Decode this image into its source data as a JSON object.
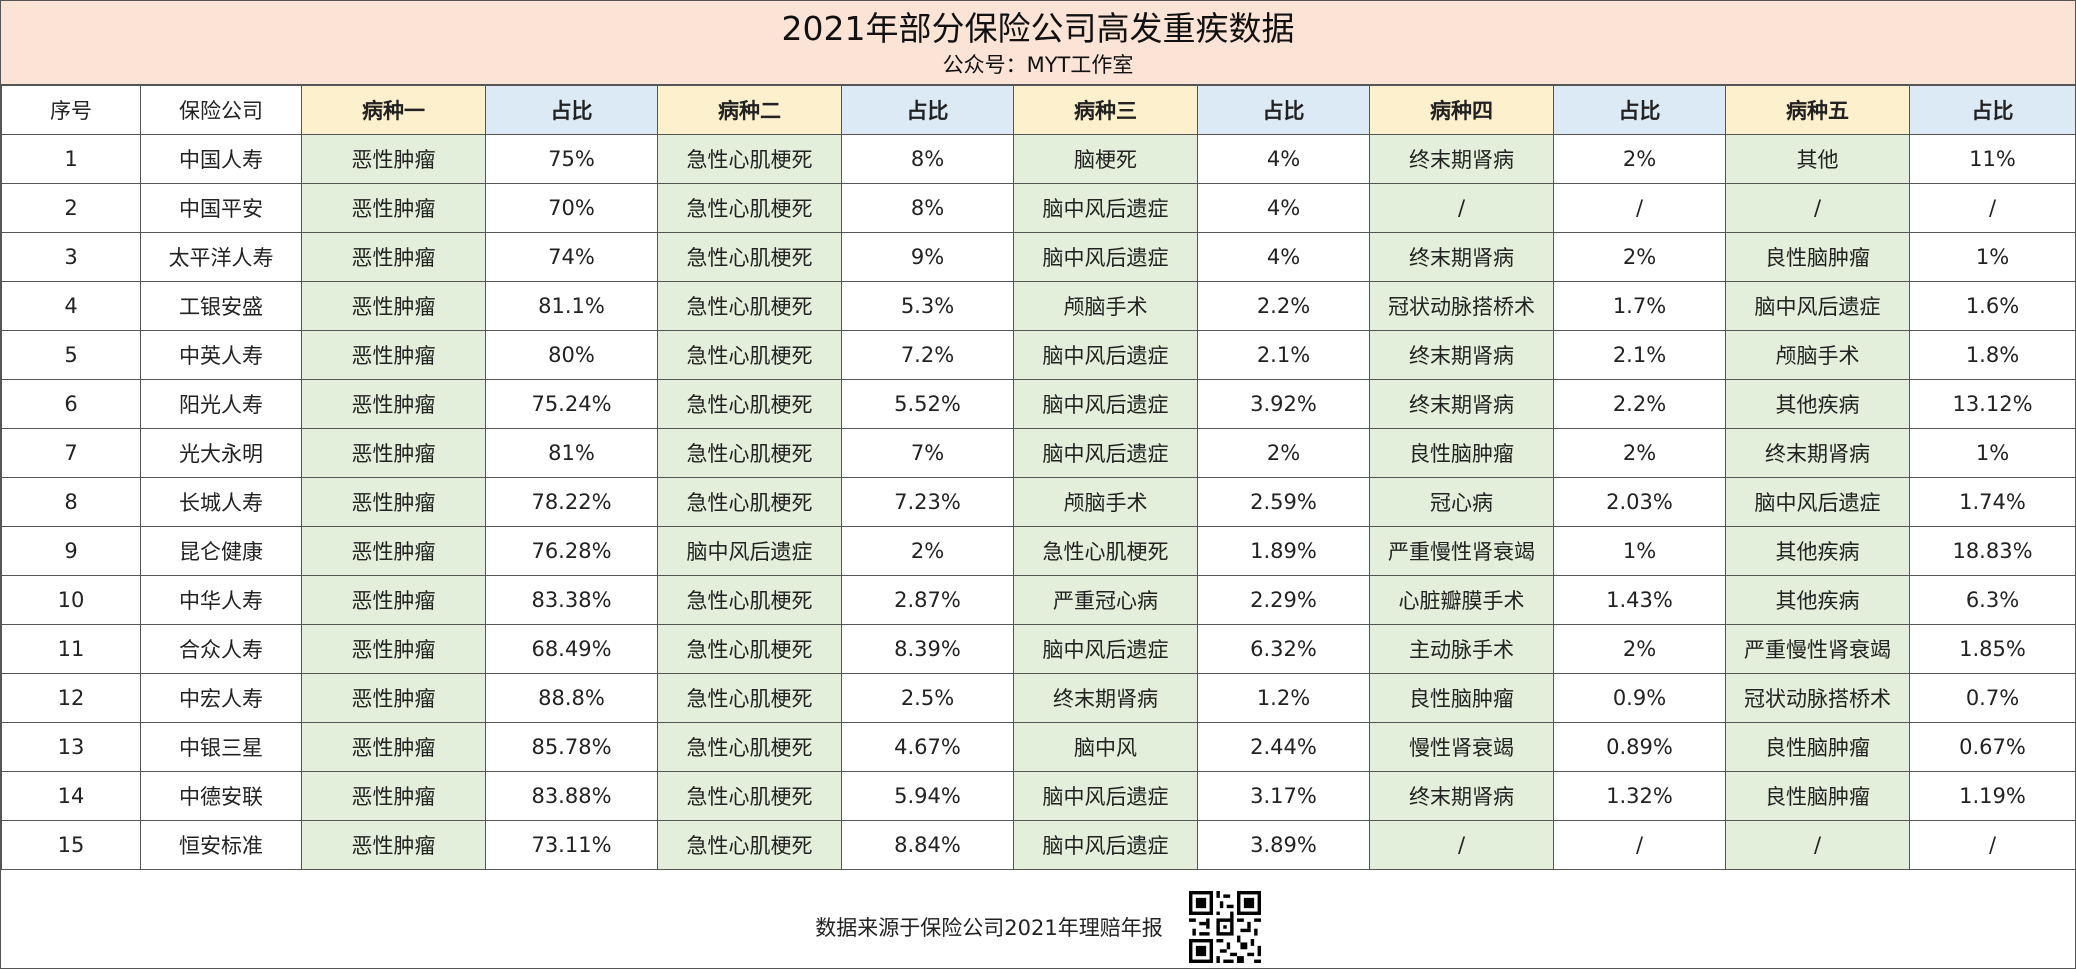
{
  "title": "2021年部分保险公司高发重疾数据",
  "subtitle": "公众号：MYT工作室",
  "headers": [
    "序号",
    "保险公司",
    "病种一",
    "占比",
    "病种二",
    "占比",
    "病种三",
    "占比",
    "病种四",
    "占比",
    "病种五",
    "占比"
  ],
  "rows": [
    [
      "1",
      "中国人寿",
      "恶性肿瘤",
      "75%",
      "急性心肌梗死",
      "8%",
      "脑梗死",
      "4%",
      "终末期肾病",
      "2%",
      "其他",
      "11%"
    ],
    [
      "2",
      "中国平安",
      "恶性肿瘤",
      "70%",
      "急性心肌梗死",
      "8%",
      "脑中风后遗症",
      "4%",
      "/",
      "/",
      "/",
      "/"
    ],
    [
      "3",
      "太平洋人寿",
      "恶性肿瘤",
      "74%",
      "急性心肌梗死",
      "9%",
      "脑中风后遗症",
      "4%",
      "终末期肾病",
      "2%",
      "良性脑肿瘤",
      "1%"
    ],
    [
      "4",
      "工银安盛",
      "恶性肿瘤",
      "81.1%",
      "急性心肌梗死",
      "5.3%",
      "颅脑手术",
      "2.2%",
      "冠状动脉搭桥术",
      "1.7%",
      "脑中风后遗症",
      "1.6%"
    ],
    [
      "5",
      "中英人寿",
      "恶性肿瘤",
      "80%",
      "急性心肌梗死",
      "7.2%",
      "脑中风后遗症",
      "2.1%",
      "终末期肾病",
      "2.1%",
      "颅脑手术",
      "1.8%"
    ],
    [
      "6",
      "阳光人寿",
      "恶性肿瘤",
      "75.24%",
      "急性心肌梗死",
      "5.52%",
      "脑中风后遗症",
      "3.92%",
      "终末期肾病",
      "2.2%",
      "其他疾病",
      "13.12%"
    ],
    [
      "7",
      "光大永明",
      "恶性肿瘤",
      "81%",
      "急性心肌梗死",
      "7%",
      "脑中风后遗症",
      "2%",
      "良性脑肿瘤",
      "2%",
      "终末期肾病",
      "1%"
    ],
    [
      "8",
      "长城人寿",
      "恶性肿瘤",
      "78.22%",
      "急性心肌梗死",
      "7.23%",
      "颅脑手术",
      "2.59%",
      "冠心病",
      "2.03%",
      "脑中风后遗症",
      "1.74%"
    ],
    [
      "9",
      "昆仑健康",
      "恶性肿瘤",
      "76.28%",
      "脑中风后遗症",
      "2%",
      "急性心肌梗死",
      "1.89%",
      "严重慢性肾衰竭",
      "1%",
      "其他疾病",
      "18.83%"
    ],
    [
      "10",
      "中华人寿",
      "恶性肿瘤",
      "83.38%",
      "急性心肌梗死",
      "2.87%",
      "严重冠心病",
      "2.29%",
      "心脏瓣膜手术",
      "1.43%",
      "其他疾病",
      "6.3%"
    ],
    [
      "11",
      "合众人寿",
      "恶性肿瘤",
      "68.49%",
      "急性心肌梗死",
      "8.39%",
      "脑中风后遗症",
      "6.32%",
      "主动脉手术",
      "2%",
      "严重慢性肾衰竭",
      "1.85%"
    ],
    [
      "12",
      "中宏人寿",
      "恶性肿瘤",
      "88.8%",
      "急性心肌梗死",
      "2.5%",
      "终末期肾病",
      "1.2%",
      "良性脑肿瘤",
      "0.9%",
      "冠状动脉搭桥术",
      "0.7%"
    ],
    [
      "13",
      "中银三星",
      "恶性肿瘤",
      "85.78%",
      "急性心肌梗死",
      "4.67%",
      "脑中风",
      "2.44%",
      "慢性肾衰竭",
      "0.89%",
      "良性脑肿瘤",
      "0.67%"
    ],
    [
      "14",
      "中德安联",
      "恶性肿瘤",
      "83.88%",
      "急性心肌梗死",
      "5.94%",
      "脑中风后遗症",
      "3.17%",
      "终末期肾病",
      "1.32%",
      "良性脑肿瘤",
      "1.19%"
    ],
    [
      "15",
      "恒安标准",
      "恶性肿瘤",
      "73.11%",
      "急性心肌梗死",
      "8.84%",
      "脑中风后遗症",
      "3.89%",
      "/",
      "/",
      "/",
      "/"
    ]
  ],
  "footer": {
    "source": "数据来源于保险公司2021年理赔年报",
    "qr_icon": "qr-code-icon"
  },
  "colors": {
    "title_bg": "#fbe3d6",
    "disease_header_bg": "#fdf0cc",
    "ratio_header_bg": "#dceaf6",
    "disease_cell_bg": "#e3efda"
  }
}
